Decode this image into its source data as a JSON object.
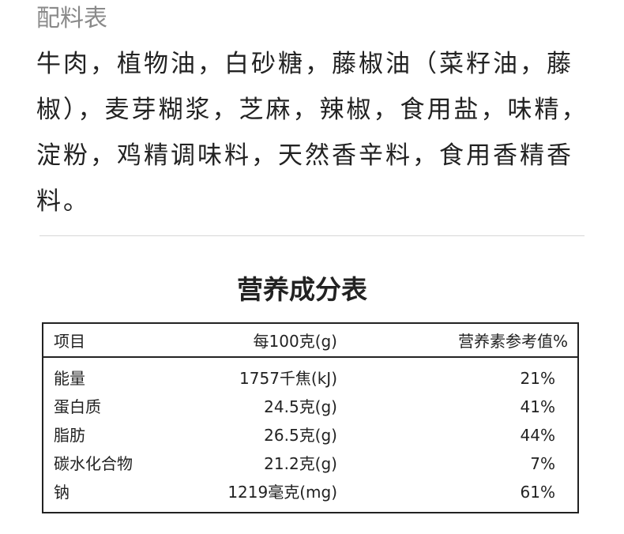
{
  "ingredients": {
    "title": "配料表",
    "lines": [
      "牛肉，植物油，白砂糖，藤椒油（菜籽油，藤",
      "椒），麦芽糊浆，芝麻，辣椒，食用盐，味精，",
      "淀粉，鸡精调味料，天然香辛料，食用香精香",
      "料。"
    ]
  },
  "nutrition": {
    "title": "营养成分表",
    "headers": [
      "项目",
      "每100克(g)",
      "营养素参考值%"
    ],
    "rows": [
      [
        "能量",
        "1757千焦(kJ)",
        "21%"
      ],
      [
        "蛋白质",
        "24.5克(g)",
        "41%"
      ],
      [
        "脂肪",
        "26.5克(g)",
        "44%"
      ],
      [
        "碳水化合物",
        "21.2克(g)",
        "7%"
      ],
      [
        "钠",
        "1219毫克(mg)",
        "61%"
      ]
    ]
  }
}
